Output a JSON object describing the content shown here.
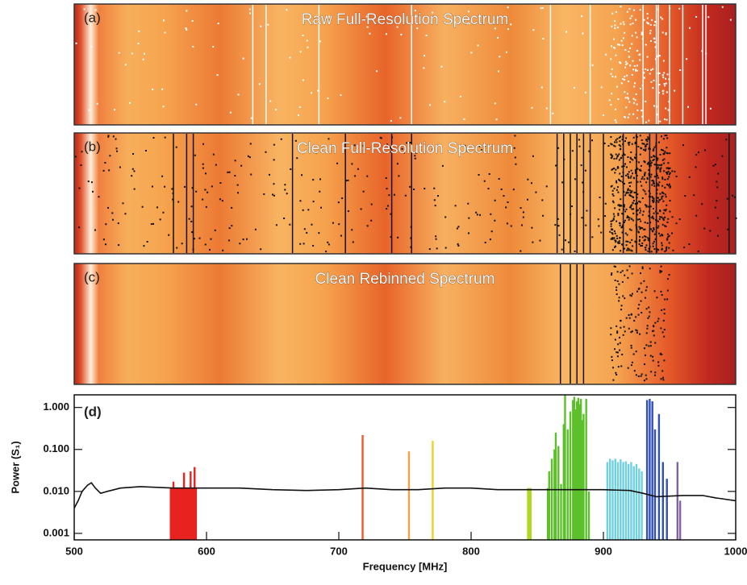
{
  "panels": [
    {
      "label": "(a)",
      "title": "Raw Full-Resolution Spectrum"
    },
    {
      "label": "(b)",
      "title": "Clean Full-Resolution Spectrum"
    },
    {
      "label": "(c)",
      "title": "Clean Rebinned Spectrum"
    }
  ],
  "chart_data": {
    "type": "line",
    "panel_label": "(d)",
    "xlabel": "Frequency [MHz]",
    "ylabel": "Power (S₁)",
    "log_y": true,
    "xlim": [
      500,
      1000
    ],
    "xticks": [
      500,
      600,
      700,
      800,
      900,
      1000
    ],
    "ylim": [
      0.0007,
      2
    ],
    "yticks": [
      {
        "value": 0.001,
        "label": "0.001"
      },
      {
        "value": 0.01,
        "label": "0.010"
      },
      {
        "value": 0.1,
        "label": "0.100"
      },
      {
        "value": 1,
        "label": "1.000"
      }
    ],
    "series": [
      {
        "color": "#111111",
        "x": [
          500,
          503,
          506,
          510,
          513,
          516,
          520,
          525,
          535,
          550,
          575,
          600,
          625,
          650,
          675,
          700,
          720,
          740,
          760,
          780,
          800,
          820,
          840,
          860,
          880,
          900,
          920,
          930,
          940,
          960,
          975,
          985,
          1000
        ],
        "values": [
          0.004,
          0.006,
          0.01,
          0.014,
          0.016,
          0.012,
          0.009,
          0.01,
          0.012,
          0.013,
          0.012,
          0.012,
          0.012,
          0.011,
          0.0105,
          0.011,
          0.012,
          0.011,
          0.011,
          0.012,
          0.012,
          0.011,
          0.011,
          0.011,
          0.011,
          0.011,
          0.0105,
          0.009,
          0.0075,
          0.008,
          0.008,
          0.007,
          0.006
        ]
      }
    ],
    "flags": [
      {
        "color": "#e8231f",
        "x": [
          573,
          574,
          575,
          576,
          577,
          578,
          579,
          580,
          581,
          582,
          583,
          584,
          585,
          586,
          587,
          588,
          589,
          590,
          591,
          592
        ],
        "values": [
          0.012,
          0.012,
          0.017,
          0.012,
          0.012,
          0.012,
          0.012,
          0.012,
          0.012,
          0.012,
          0.028,
          0.012,
          0.012,
          0.012,
          0.012,
          0.03,
          0.012,
          0.012,
          0.038,
          0.012
        ]
      },
      {
        "color": "#f05a2a",
        "x": [
          718
        ],
        "values": [
          0.22
        ]
      },
      {
        "color": "#f7a040",
        "x": [
          753
        ],
        "values": [
          0.09
        ]
      },
      {
        "color": "#f2d020",
        "x": [
          771
        ],
        "values": [
          0.16
        ]
      },
      {
        "color": "#b0d820",
        "x": [
          843,
          844,
          845
        ],
        "values": [
          0.012,
          0.012,
          0.012
        ]
      },
      {
        "color": "#5cc02a",
        "x": [
          858,
          859,
          861,
          863,
          864,
          866,
          868,
          870,
          871,
          873,
          875,
          877,
          878,
          879,
          880,
          881,
          882,
          883,
          884,
          885,
          887,
          889
        ],
        "values": [
          0.012,
          0.03,
          0.06,
          0.1,
          0.25,
          0.12,
          0.015,
          0.4,
          2,
          0.3,
          0.8,
          1.5,
          1.8,
          0.9,
          1.4,
          1.7,
          1.2,
          1.6,
          0.5,
          0.7,
          1.6,
          0.01
        ]
      },
      {
        "color": "#6fd0e0",
        "x": [
          903,
          905,
          907,
          909,
          911,
          913,
          915,
          917,
          919,
          921,
          923,
          925,
          927,
          929
        ],
        "values": [
          0.05,
          0.06,
          0.055,
          0.06,
          0.05,
          0.058,
          0.05,
          0.052,
          0.045,
          0.05,
          0.04,
          0.045,
          0.035,
          0.03
        ]
      },
      {
        "color": "#3050b8",
        "x": [
          933,
          935,
          937,
          939,
          942,
          945,
          948
        ],
        "values": [
          1.5,
          1.6,
          1.4,
          0.3,
          0.7,
          0.05,
          0.02
        ]
      },
      {
        "color": "#8060a8",
        "x": [
          956,
          958
        ],
        "values": [
          0.05,
          0.006
        ]
      }
    ]
  }
}
